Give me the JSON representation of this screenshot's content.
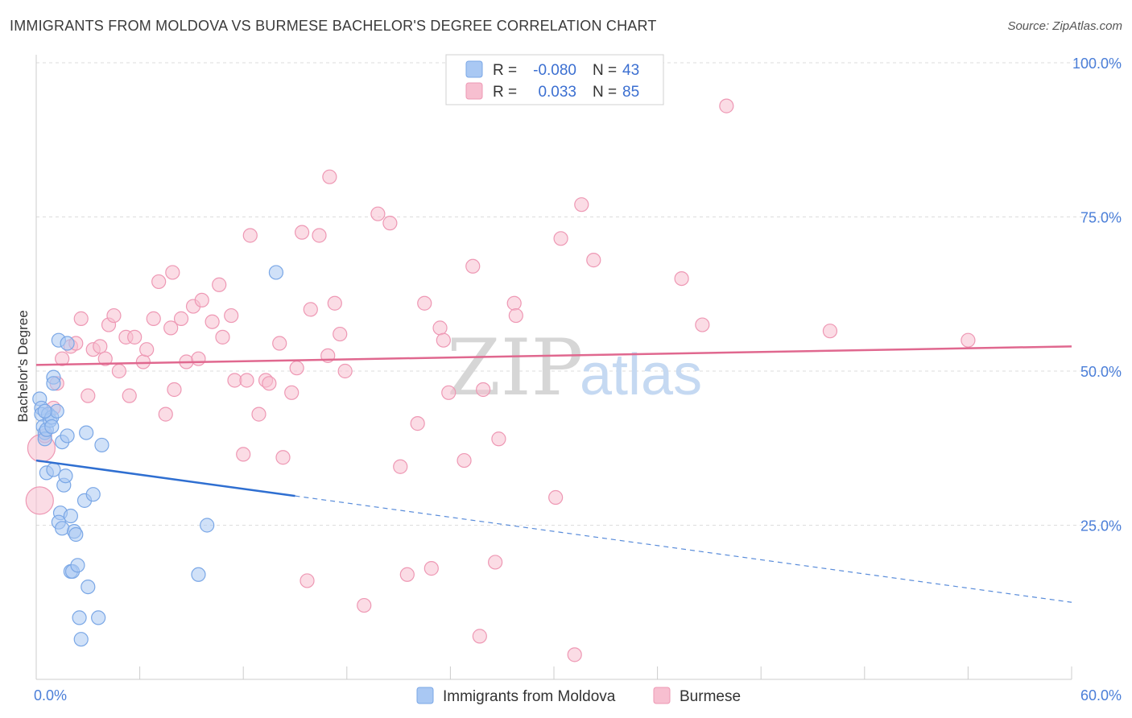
{
  "title": "IMMIGRANTS FROM MOLDOVA VS BURMESE BACHELOR'S DEGREE CORRELATION CHART",
  "source": "Source: ZipAtlas.com",
  "watermark": {
    "zip": "ZIP",
    "atlas": "atlas"
  },
  "colors": {
    "moldova_fill": "#a9c8f3",
    "moldova_stroke": "#7aa7e6",
    "moldova_line": "#2f6fd1",
    "burmese_fill": "#f7bfd0",
    "burmese_stroke": "#ee98b4",
    "burmese_line": "#e0688f",
    "axis_label": "#4a7ed8",
    "grid": "#dddddd"
  },
  "legend": {
    "r_label": "R =",
    "n_label": "N =",
    "moldova": {
      "r": "-0.080",
      "n": "43"
    },
    "burmese": {
      "r": "0.033",
      "n": "85"
    }
  },
  "chart_data": {
    "type": "scatter",
    "title": "IMMIGRANTS FROM MOLDOVA VS BURMESE BACHELOR'S DEGREE CORRELATION CHART",
    "xlabel": "",
    "ylabel": "Bachelor's Degree",
    "xlim": [
      0,
      60
    ],
    "ylim": [
      0,
      105
    ],
    "x_tick_labels": [
      "0.0%",
      "60.0%"
    ],
    "y_ticks": [
      25,
      50,
      75,
      100
    ],
    "y_tick_labels": [
      "25.0%",
      "50.0%",
      "75.0%",
      "100.0%"
    ],
    "grid": true,
    "legend_position": "top-center",
    "series": [
      {
        "name": "Immigrants from Moldova",
        "trend": {
          "x0": 0,
          "y0": 35.5,
          "x_solid_end": 15,
          "x1": 60,
          "y1": 12.5
        },
        "points": [
          [
            0.2,
            45.5
          ],
          [
            0.3,
            44
          ],
          [
            0.3,
            43
          ],
          [
            0.4,
            41
          ],
          [
            0.5,
            40
          ],
          [
            0.5,
            39
          ],
          [
            0.6,
            40.5
          ],
          [
            0.6,
            33.5
          ],
          [
            0.7,
            43
          ],
          [
            0.8,
            42
          ],
          [
            0.9,
            42.5
          ],
          [
            1.0,
            49
          ],
          [
            1.0,
            48
          ],
          [
            1.0,
            34
          ],
          [
            1.2,
            43.5
          ],
          [
            1.3,
            55
          ],
          [
            1.4,
            27
          ],
          [
            1.3,
            25.5
          ],
          [
            1.5,
            24.5
          ],
          [
            1.5,
            38.5
          ],
          [
            1.6,
            31.5
          ],
          [
            1.7,
            33
          ],
          [
            1.8,
            54.5
          ],
          [
            1.8,
            39.5
          ],
          [
            2.0,
            26.5
          ],
          [
            2.0,
            17.5
          ],
          [
            2.1,
            17.5
          ],
          [
            2.2,
            24
          ],
          [
            2.3,
            23.5
          ],
          [
            2.4,
            18.5
          ],
          [
            2.5,
            10
          ],
          [
            2.6,
            6.5
          ],
          [
            2.8,
            29
          ],
          [
            2.9,
            40
          ],
          [
            3.0,
            15
          ],
          [
            3.3,
            30
          ],
          [
            3.8,
            38
          ],
          [
            3.6,
            10
          ],
          [
            9.4,
            17
          ],
          [
            9.9,
            25
          ],
          [
            13.9,
            66
          ],
          [
            0.5,
            43.5
          ],
          [
            0.9,
            41
          ]
        ]
      },
      {
        "name": "Burmese",
        "trend": {
          "x0": 0,
          "y0": 51,
          "x1": 60,
          "y1": 54
        },
        "points": [
          [
            0.2,
            29
          ],
          [
            0.3,
            37.5
          ],
          [
            0.5,
            39.5
          ],
          [
            1.0,
            44
          ],
          [
            1.2,
            48
          ],
          [
            1.5,
            52
          ],
          [
            2.0,
            54
          ],
          [
            2.3,
            54.5
          ],
          [
            2.6,
            58.5
          ],
          [
            3.0,
            46
          ],
          [
            3.3,
            53.5
          ],
          [
            3.7,
            54
          ],
          [
            4.0,
            52
          ],
          [
            4.2,
            57.5
          ],
          [
            4.5,
            59
          ],
          [
            4.8,
            50
          ],
          [
            5.2,
            55.5
          ],
          [
            5.4,
            46
          ],
          [
            5.7,
            55.5
          ],
          [
            6.2,
            51.5
          ],
          [
            6.4,
            53.5
          ],
          [
            6.8,
            58.5
          ],
          [
            7.1,
            64.5
          ],
          [
            7.5,
            43
          ],
          [
            7.8,
            57
          ],
          [
            7.9,
            66
          ],
          [
            8.4,
            58.5
          ],
          [
            8.7,
            51.5
          ],
          [
            9.1,
            60.5
          ],
          [
            9.4,
            52
          ],
          [
            9.6,
            61.5
          ],
          [
            10.2,
            58
          ],
          [
            10.6,
            64
          ],
          [
            10.8,
            55.5
          ],
          [
            11.3,
            59
          ],
          [
            11.5,
            48.5
          ],
          [
            12.2,
            48.5
          ],
          [
            12.0,
            36.5
          ],
          [
            12.4,
            72
          ],
          [
            12.9,
            43
          ],
          [
            13.3,
            48.5
          ],
          [
            13.5,
            48
          ],
          [
            14.1,
            54.5
          ],
          [
            14.3,
            36
          ],
          [
            14.8,
            46.5
          ],
          [
            15.1,
            50.5
          ],
          [
            15.4,
            72.5
          ],
          [
            15.7,
            16
          ],
          [
            15.9,
            60
          ],
          [
            16.4,
            72
          ],
          [
            16.9,
            52.5
          ],
          [
            17.3,
            61
          ],
          [
            17.6,
            56
          ],
          [
            17.9,
            50
          ],
          [
            17.0,
            81.5
          ],
          [
            19.0,
            12
          ],
          [
            19.8,
            75.5
          ],
          [
            20.5,
            74
          ],
          [
            21.1,
            34.5
          ],
          [
            21.5,
            17
          ],
          [
            22.1,
            41.5
          ],
          [
            22.5,
            61
          ],
          [
            22.9,
            18
          ],
          [
            23.4,
            57
          ],
          [
            23.6,
            55
          ],
          [
            23.9,
            46.5
          ],
          [
            24.8,
            35.5
          ],
          [
            25.3,
            67
          ],
          [
            25.7,
            7
          ],
          [
            25.9,
            47
          ],
          [
            26.6,
            19
          ],
          [
            26.8,
            39
          ],
          [
            27.7,
            61
          ],
          [
            27.8,
            59
          ],
          [
            30.1,
            29.5
          ],
          [
            30.4,
            71.5
          ],
          [
            31.2,
            4
          ],
          [
            31.6,
            77
          ],
          [
            32.3,
            68
          ],
          [
            37.4,
            65
          ],
          [
            38.6,
            57.5
          ],
          [
            40.0,
            93
          ],
          [
            46.0,
            56.5
          ],
          [
            54.0,
            55
          ],
          [
            8.0,
            47
          ]
        ]
      }
    ]
  }
}
